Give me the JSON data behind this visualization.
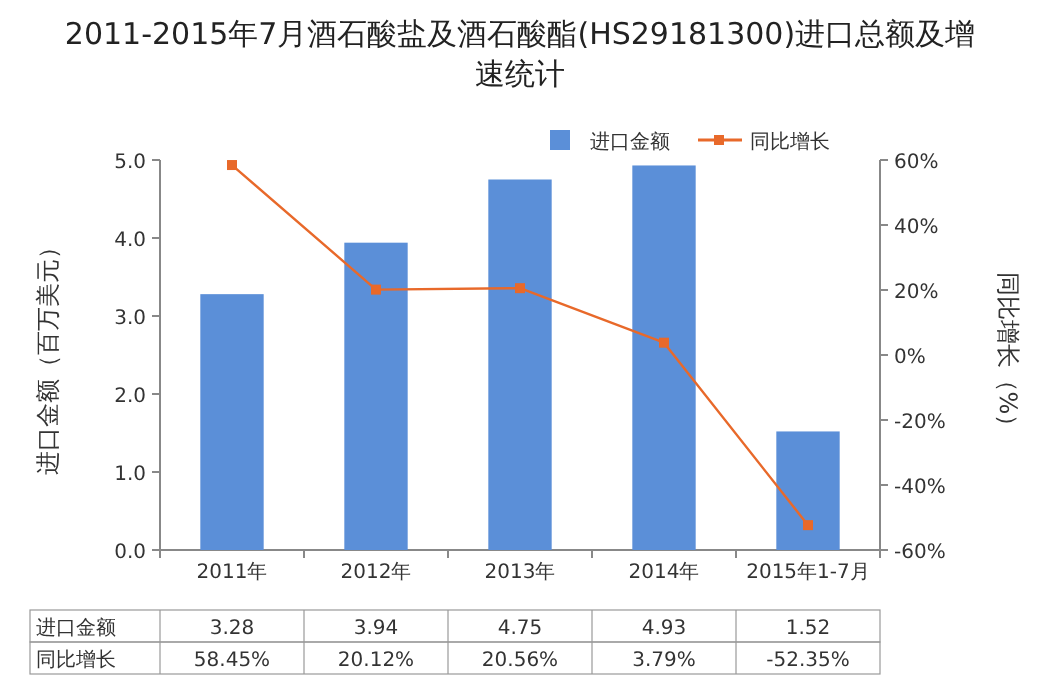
{
  "chart_data": {
    "type": "bar",
    "title": "2011-2015年7月酒石酸盐及酒石酸酯(HS29181300)进口总额及增速统计",
    "categories": [
      "2011年",
      "2012年",
      "2013年",
      "2014年",
      "2015年1-7月"
    ],
    "series": [
      {
        "name": "进口金额",
        "color": "#5b8fd8",
        "values": [
          3.28,
          3.94,
          4.75,
          4.93,
          1.52
        ],
        "value_labels": [
          "3.28",
          "3.94",
          "4.75",
          "4.93",
          "1.52"
        ]
      },
      {
        "name": "同比增长",
        "type": "line",
        "axis": "y2",
        "color": "#e8692a",
        "values": [
          58.45,
          20.12,
          20.56,
          3.79,
          -52.35
        ],
        "value_labels": [
          "58.45%",
          "20.12%",
          "20.56%",
          "3.79%",
          "-52.35%"
        ]
      }
    ],
    "ylabel": "进口金额（百万美元）",
    "y2label": "同比增长（%）",
    "ylim": [
      0,
      5
    ],
    "yticks": [
      {
        "value": 0,
        "label": "0.0"
      },
      {
        "value": 1,
        "label": "1.0"
      },
      {
        "value": 2,
        "label": "2.0"
      },
      {
        "value": 3,
        "label": "3.0"
      },
      {
        "value": 4,
        "label": "4.0"
      },
      {
        "value": 5,
        "label": "5.0"
      }
    ],
    "y2lim": [
      -60,
      60
    ],
    "y2ticks": [
      {
        "value": -60,
        "label": "-60%"
      },
      {
        "value": -40,
        "label": "-40%"
      },
      {
        "value": -20,
        "label": "-20%"
      },
      {
        "value": 0,
        "label": "0%"
      },
      {
        "value": 20,
        "label": "20%"
      },
      {
        "value": 40,
        "label": "40%"
      },
      {
        "value": 60,
        "label": "60%"
      }
    ],
    "legend": "top right",
    "marker": "square"
  }
}
